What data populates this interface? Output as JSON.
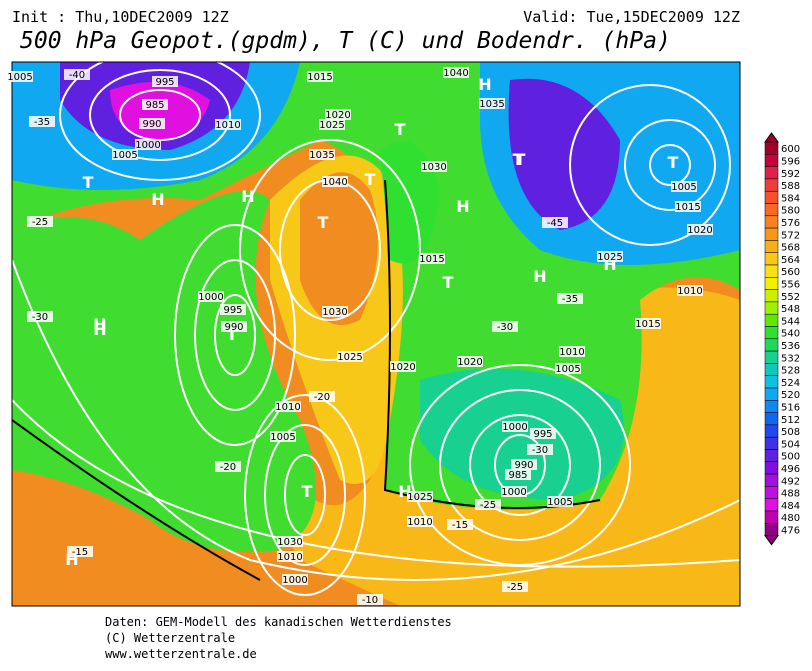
{
  "header": {
    "init": "Init : Thu,10DEC2009 12Z",
    "valid": "Valid: Tue,15DEC2009 12Z",
    "title": "500 hPa Geopot.(gpdm), T (C) und Bodendr. (hPa)"
  },
  "colorbar": {
    "ticks": [
      600,
      596,
      592,
      588,
      584,
      580,
      576,
      572,
      568,
      564,
      560,
      556,
      552,
      548,
      544,
      540,
      536,
      532,
      528,
      524,
      520,
      516,
      512,
      508,
      504,
      500,
      496,
      492,
      488,
      484,
      480,
      476
    ],
    "colors": [
      "#a0002a",
      "#c8003c",
      "#e0204a",
      "#f03c3c",
      "#f85028",
      "#f86820",
      "#f88020",
      "#f89818",
      "#f8b018",
      "#f8c818",
      "#f8e018",
      "#f0f000",
      "#c8f000",
      "#a0f000",
      "#60e800",
      "#30e030",
      "#20d860",
      "#18d090",
      "#10c8b8",
      "#10c0e0",
      "#10a8f0",
      "#1088f0",
      "#1068f0",
      "#2048f0",
      "#4030e8",
      "#6020e0",
      "#8010e0",
      "#a010e0",
      "#c010e0",
      "#e010e0",
      "#c000b0",
      "#900080"
    ]
  },
  "map_labels": [
    "H",
    "T",
    "T",
    "H",
    "T",
    "H",
    "T",
    "T",
    "T",
    "H",
    "H",
    "T",
    "H",
    "T",
    "H",
    "H",
    "H",
    "T",
    "T",
    "H",
    "995",
    "990",
    "985",
    "1000",
    "1005",
    "1010",
    "1015",
    "1020",
    "1030",
    "1040",
    "1025",
    "1035",
    "1030",
    "1025",
    "1000",
    "995",
    "990",
    "1005",
    "1010",
    "1030",
    "1025",
    "1020",
    "1015",
    "1010",
    "1005",
    "1000",
    "995",
    "990",
    "985",
    "1000",
    "1005",
    "1010",
    "1020",
    "1015",
    "1040",
    "1035",
    "1025",
    "1015",
    "1020",
    "1010",
    "1005",
    "-40",
    "-35",
    "-30",
    "-25",
    "-20",
    "-15",
    "-10",
    "-45",
    "-35",
    "-30",
    "-25",
    "-20",
    "-30",
    "-25",
    "-15",
    "1010",
    "1000",
    "1005"
  ],
  "footer": [
    "Daten: GEM-Modell des kanadischen Wetterdienstes",
    "(C) Wetterzentrale",
    "www.wetterzentrale.de"
  ]
}
